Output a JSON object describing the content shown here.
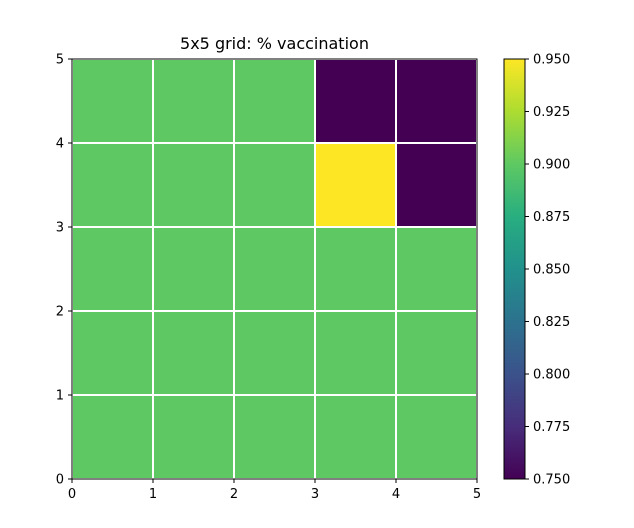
{
  "chart_data": {
    "type": "heatmap",
    "title": "5x5 grid: % vaccination",
    "xlabel": "",
    "ylabel": "",
    "xlim": [
      0,
      5
    ],
    "ylim": [
      0,
      5
    ],
    "x_ticks": [
      "0",
      "1",
      "2",
      "3",
      "4",
      "5"
    ],
    "y_ticks": [
      "0",
      "1",
      "2",
      "3",
      "4",
      "5"
    ],
    "rows_top_to_bottom": [
      [
        0.9,
        0.9,
        0.9,
        0.75,
        0.75
      ],
      [
        0.9,
        0.9,
        0.9,
        0.95,
        0.75
      ],
      [
        0.9,
        0.9,
        0.9,
        0.9,
        0.9
      ],
      [
        0.9,
        0.9,
        0.9,
        0.9,
        0.9
      ],
      [
        0.9,
        0.9,
        0.9,
        0.9,
        0.9
      ]
    ],
    "colormap": "viridis",
    "vmin": 0.75,
    "vmax": 0.95,
    "colorbar_ticks": [
      "0.750",
      "0.775",
      "0.800",
      "0.825",
      "0.850",
      "0.875",
      "0.900",
      "0.925",
      "0.950"
    ],
    "cell_edge_color": "#ffffff",
    "grid": false
  }
}
